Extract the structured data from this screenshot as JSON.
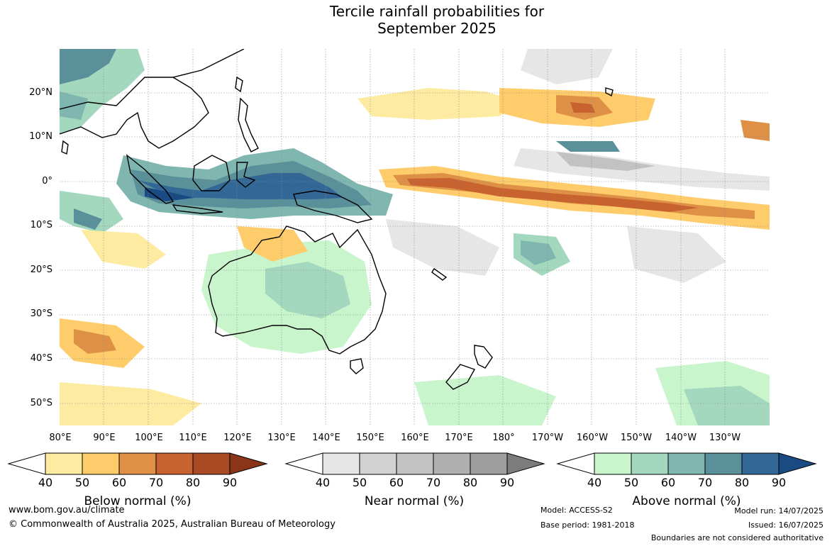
{
  "title": {
    "line1": "Tercile rainfall probabilities for",
    "line2": "September 2025"
  },
  "lat_labels": [
    "20°N",
    "10°N",
    "0°",
    "10°S",
    "20°S",
    "30°S",
    "40°S",
    "50°S"
  ],
  "lon_labels": [
    "80°E",
    "90°E",
    "100°E",
    "110°E",
    "120°E",
    "130°E",
    "140°E",
    "150°E",
    "160°E",
    "170°E",
    "180°",
    "170°W",
    "160°W",
    "150°W",
    "140°W",
    "130°W"
  ],
  "colorbars": [
    {
      "name": "Below normal (%)",
      "ticks": [
        "40",
        "50",
        "60",
        "70",
        "80",
        "90"
      ],
      "colors": [
        "#ffffff",
        "#feeba2",
        "#fecc6a",
        "#de9146",
        "#c8622f",
        "#a84a24",
        "#8a3418"
      ]
    },
    {
      "name": "Near normal (%)",
      "ticks": [
        "40",
        "50",
        "60",
        "70",
        "80",
        "90"
      ],
      "colors": [
        "#ffffff",
        "#e6e6e6",
        "#d2d2d2",
        "#c2c2c2",
        "#b0b0b0",
        "#9e9e9e",
        "#7c7c7c"
      ]
    },
    {
      "name": "Above normal (%)",
      "ticks": [
        "40",
        "50",
        "60",
        "70",
        "80",
        "90"
      ],
      "colors": [
        "#ffffff",
        "#c9f5cd",
        "#a3d8be",
        "#7fb7b0",
        "#5a9099",
        "#336896",
        "#1a4a82"
      ]
    }
  ],
  "footer": {
    "url": "www.bom.gov.au/climate",
    "copyright": "© Commonwealth of Australia 2025, Australian Bureau of Meteorology",
    "model": "Model: ACCESS-S2",
    "base_period": "Base period: 1981-2018",
    "model_run": "Model run: 14/07/2025",
    "issued": "Issued: 16/07/2025",
    "boundaries": "Boundaries are not considered authoritative"
  }
}
